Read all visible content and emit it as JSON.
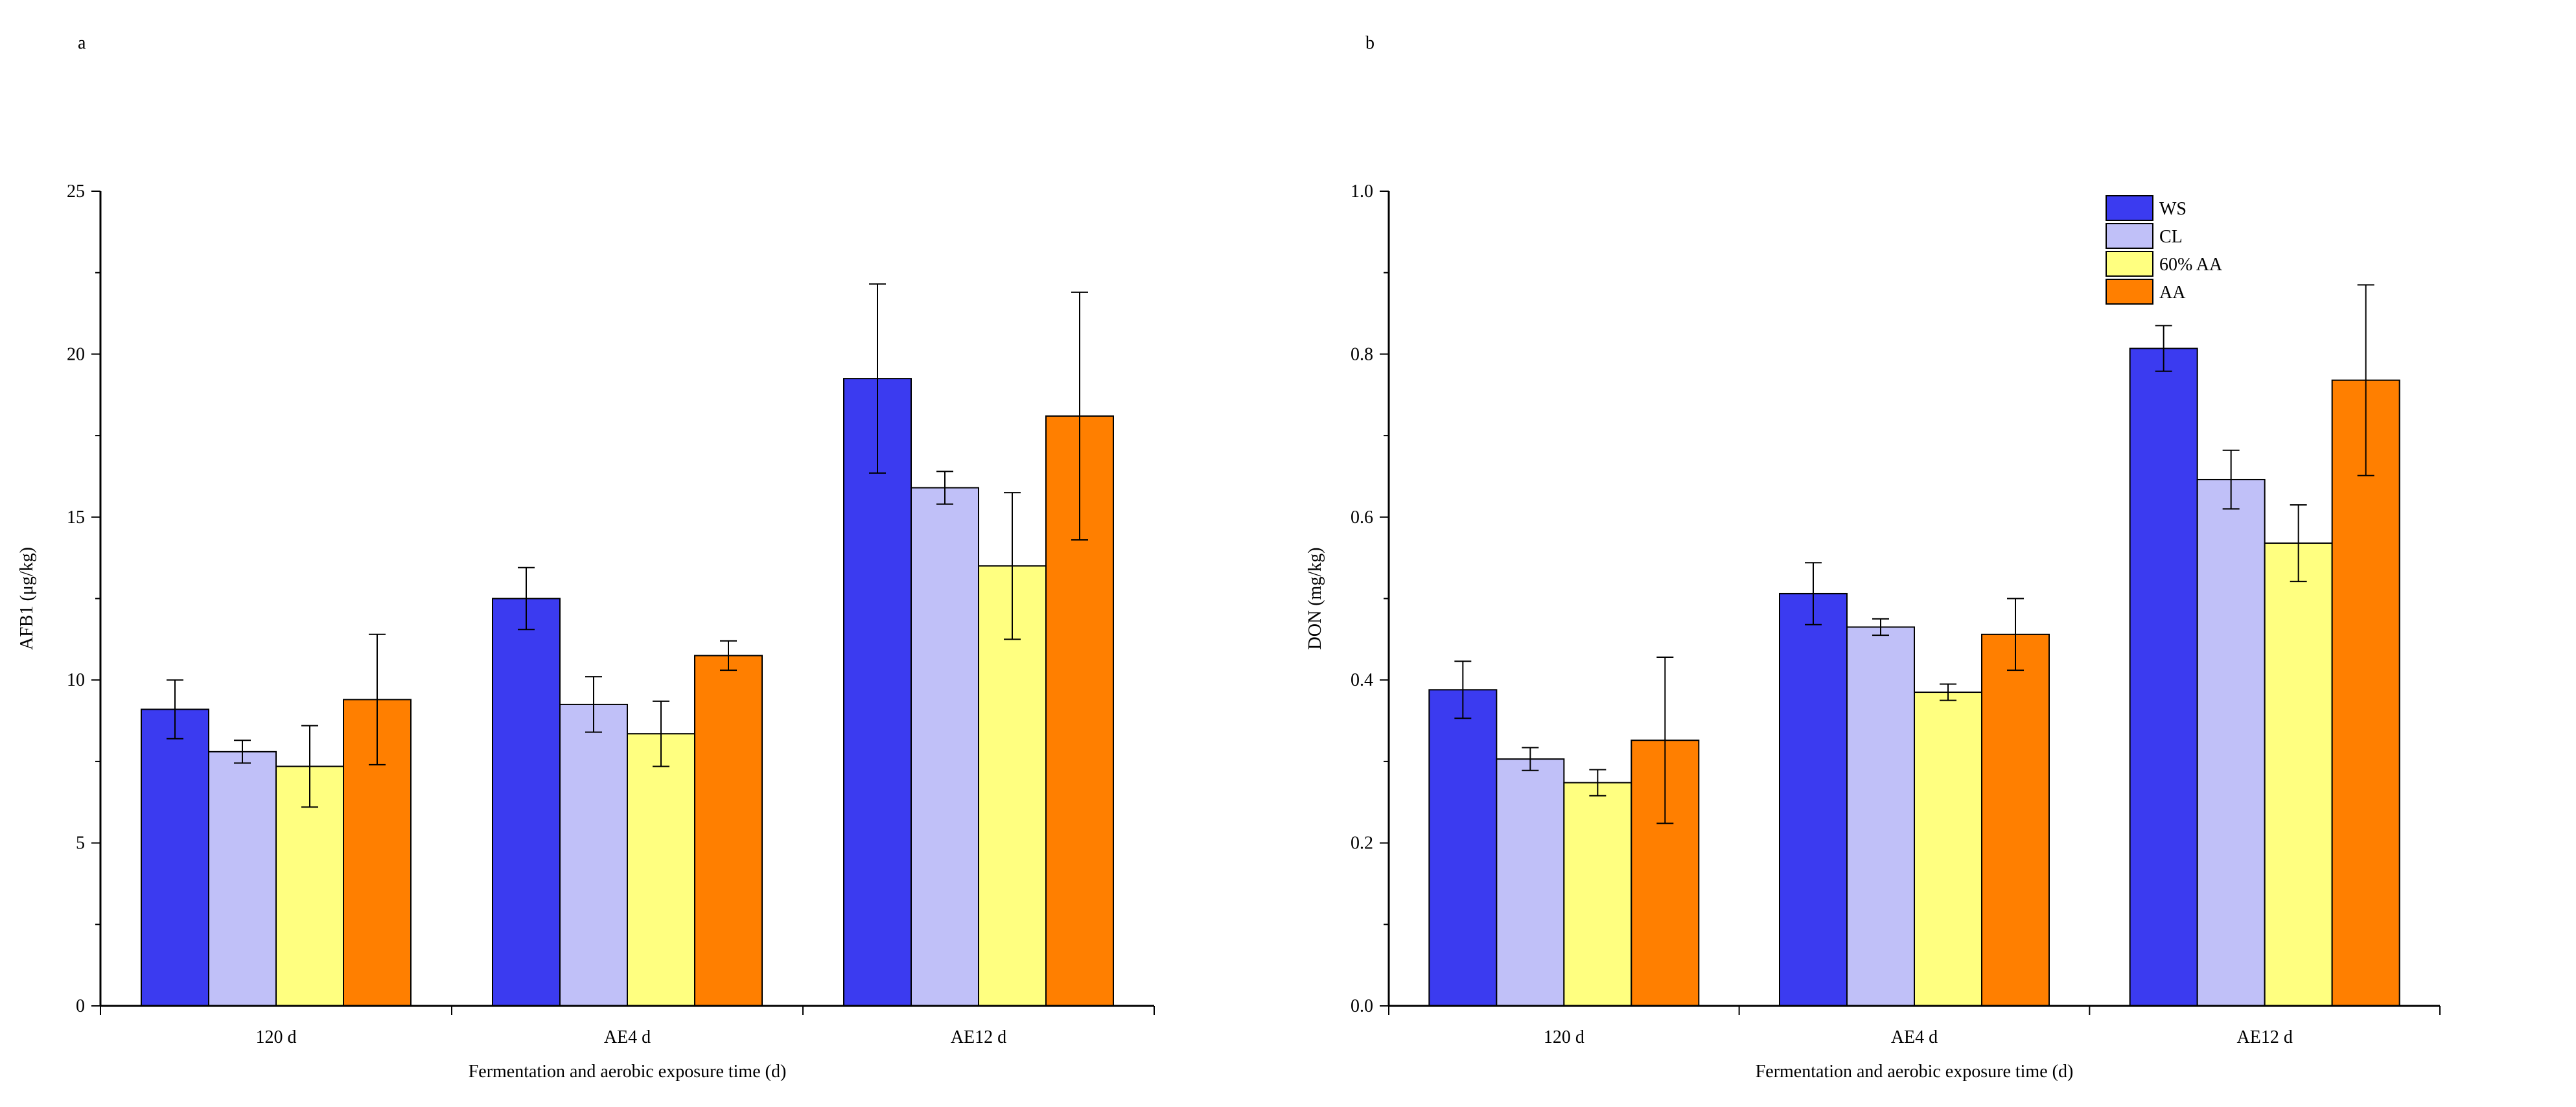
{
  "colors": {
    "WS": "#3b3bf0",
    "CL": "#c0c0f8",
    "60% AA": "#ffff80",
    "AA": "#ff7f00"
  },
  "chart_data": [
    {
      "panel": "a",
      "type": "bar",
      "title": "",
      "xlabel": "Fermentation and aerobic exposure time (d)",
      "ylabel": "AFB1 (μg/kg)",
      "ylim": [
        0,
        25
      ],
      "yticks": [
        0,
        5,
        10,
        15,
        20,
        25
      ],
      "ytick_labels": [
        "0",
        "5",
        "10",
        "15",
        "20",
        "25"
      ],
      "categories": [
        "120 d",
        "AE4 d",
        "AE12 d"
      ],
      "series": [
        {
          "name": "WS",
          "values": [
            9.1,
            12.5,
            19.25
          ],
          "errors": [
            0.9,
            0.95,
            2.9
          ]
        },
        {
          "name": "CL",
          "values": [
            7.8,
            9.25,
            15.9
          ],
          "errors": [
            0.35,
            0.85,
            0.5
          ]
        },
        {
          "name": "60% AA",
          "values": [
            7.35,
            8.35,
            13.5
          ],
          "errors": [
            1.25,
            1.0,
            2.25
          ]
        },
        {
          "name": "AA",
          "values": [
            9.4,
            10.75,
            18.1
          ],
          "errors": [
            2.0,
            0.45,
            3.8
          ]
        }
      ]
    },
    {
      "panel": "b",
      "type": "bar",
      "title": "",
      "xlabel": "Fermentation and aerobic exposure time (d)",
      "ylabel": "DON (mg/kg)",
      "ylim": [
        0,
        1.0
      ],
      "yticks": [
        0,
        0.2,
        0.4,
        0.6,
        0.8,
        1.0
      ],
      "ytick_labels": [
        "0.0",
        "0.2",
        "0.4",
        "0.6",
        "0.8",
        "1.0"
      ],
      "categories": [
        "120 d",
        "AE4 d",
        "AE12 d"
      ],
      "legend": {
        "position": "top-right",
        "entries": [
          "WS",
          "CL",
          "60% AA",
          "AA"
        ]
      },
      "series": [
        {
          "name": "WS",
          "values": [
            0.388,
            0.506,
            0.807
          ],
          "errors": [
            0.035,
            0.038,
            0.028
          ]
        },
        {
          "name": "CL",
          "values": [
            0.303,
            0.465,
            0.646
          ],
          "errors": [
            0.014,
            0.01,
            0.036
          ]
        },
        {
          "name": "60% AA",
          "values": [
            0.274,
            0.385,
            0.568
          ],
          "errors": [
            0.016,
            0.01,
            0.047
          ]
        },
        {
          "name": "AA",
          "values": [
            0.326,
            0.456,
            0.768
          ],
          "errors": [
            0.102,
            0.044,
            0.117
          ]
        }
      ]
    }
  ]
}
